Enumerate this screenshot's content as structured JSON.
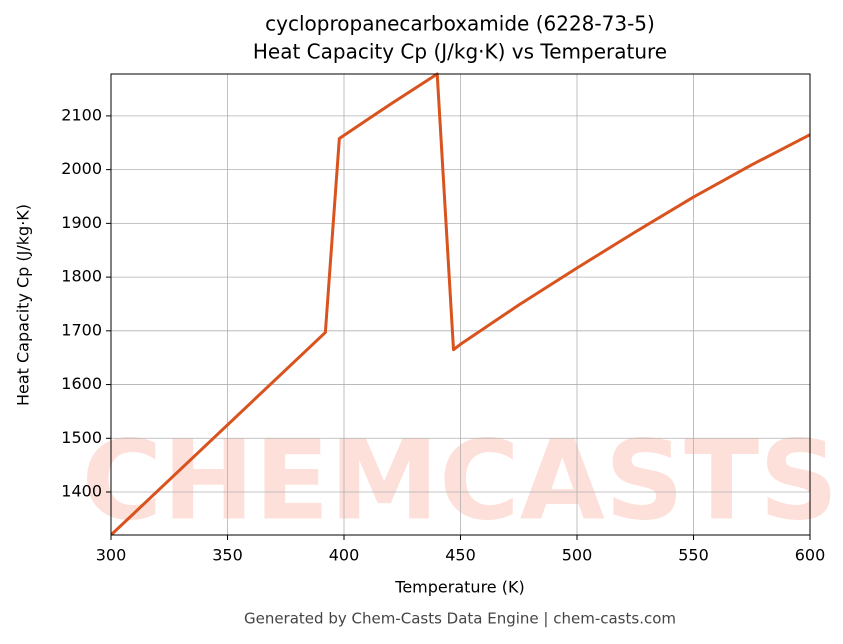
{
  "chart_data": {
    "type": "line",
    "title": "cyclopropanecarboxamide (6228-73-5)",
    "subtitle": "Heat Capacity Cp (J/kg·K) vs Temperature",
    "x_label": "Temperature (K)",
    "y_label": "Heat Capacity Cp (J/kg·K)",
    "footer": "Generated by Chem-Casts Data Engine | chem-casts.com",
    "watermark": "CHEMCASTS",
    "x": [
      300,
      392,
      398,
      420,
      440,
      447,
      450,
      475,
      500,
      525,
      550,
      575,
      600
    ],
    "series": [
      {
        "name": "Cp",
        "color": "#d9531e",
        "values": [
          1320,
          1697,
          2058,
          2122,
          2178,
          1665,
          1675,
          1748,
          1817,
          1884,
          1949,
          2009,
          2065
        ]
      }
    ],
    "xlim": [
      300,
      600
    ],
    "xticks": [
      300,
      350,
      400,
      450,
      500,
      550,
      600
    ],
    "ylim": [
      1320,
      2178
    ],
    "yticks": [
      1400,
      1500,
      1600,
      1700,
      1800,
      1900,
      2000,
      2100
    ],
    "grid": true
  }
}
